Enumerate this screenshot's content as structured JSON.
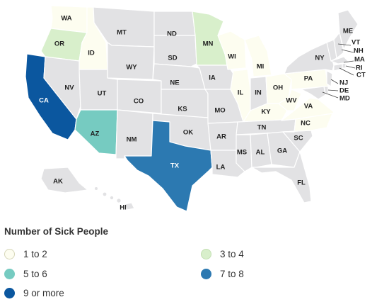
{
  "legend": {
    "title": "Number of Sick People",
    "items": [
      {
        "key": "b1",
        "label": "1 to 2",
        "color": "#fdfdf0",
        "border": "#d6d6b8"
      },
      {
        "key": "b2",
        "label": "3 to 4",
        "color": "#d8efcb",
        "border": "#c2dfb2"
      },
      {
        "key": "b3",
        "label": "5 to 6",
        "color": "#76cbc1",
        "border": "#76cbc1"
      },
      {
        "key": "b4",
        "label": "7 to 8",
        "color": "#2c79b1",
        "border": "#2c79b1"
      },
      {
        "key": "b5",
        "label": "9 or more",
        "color": "#0b579f",
        "border": "#0b579f"
      }
    ]
  },
  "colors": {
    "none": "#e2e2e4",
    "border": "#ffffff"
  },
  "states": {
    "WA": "b1",
    "OR": "b2",
    "CA": "b5",
    "ID": "b1",
    "NV": "none",
    "AZ": "b3",
    "UT": "none",
    "MT": "none",
    "WY": "none",
    "CO": "none",
    "NM": "none",
    "ND": "none",
    "SD": "none",
    "NE": "none",
    "KS": "none",
    "OK": "none",
    "TX": "b4",
    "MN": "b2",
    "IA": "none",
    "MO": "none",
    "AR": "none",
    "LA": "none",
    "WI": "b1",
    "IL": "b1",
    "MI": "b1",
    "IN": "none",
    "OH": "b1",
    "KY": "b1",
    "TN": "none",
    "MS": "none",
    "AL": "none",
    "GA": "none",
    "FL": "none",
    "SC": "none",
    "NC": "b1",
    "VA": "b1",
    "WV": "b1",
    "PA": "b1",
    "NY": "none",
    "ME": "none",
    "VT": "none",
    "NH": "none",
    "MA": "none",
    "RI": "none",
    "CT": "none",
    "NJ": "none",
    "DE": "none",
    "MD": "none",
    "AK": "none",
    "HI": "none"
  }
}
